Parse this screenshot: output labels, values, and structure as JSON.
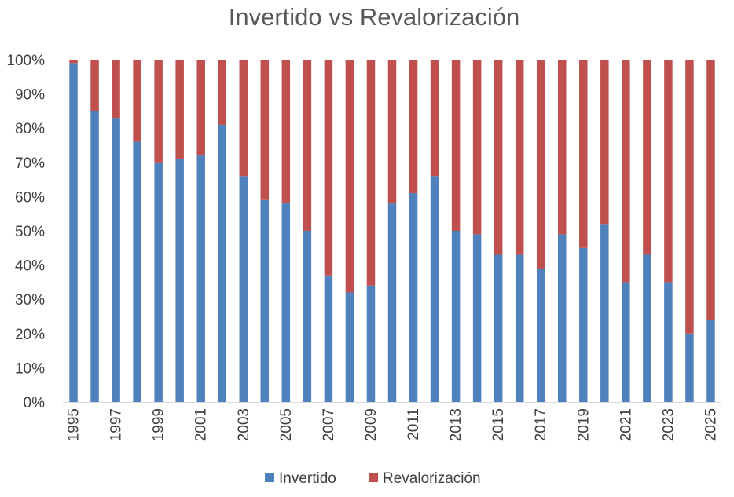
{
  "chart_data": {
    "type": "bar",
    "stacked": true,
    "percent_stacked": true,
    "title": "Invertido vs Revalorización",
    "xlabel": "",
    "ylabel": "",
    "ylim": [
      0,
      100
    ],
    "y_ticks": [
      "0%",
      "10%",
      "20%",
      "30%",
      "40%",
      "50%",
      "60%",
      "70%",
      "80%",
      "90%",
      "100%"
    ],
    "categories": [
      1995,
      1996,
      1997,
      1998,
      1999,
      2000,
      2001,
      2002,
      2003,
      2004,
      2005,
      2006,
      2007,
      2008,
      2009,
      2010,
      2011,
      2012,
      2013,
      2014,
      2015,
      2016,
      2017,
      2018,
      2019,
      2020,
      2021,
      2022,
      2023,
      2024,
      2025
    ],
    "x_tick_labels": [
      "1995",
      "1997",
      "1999",
      "2001",
      "2003",
      "2005",
      "2007",
      "2009",
      "2011",
      "2013",
      "2015",
      "2017",
      "2019",
      "2021",
      "2023",
      "2025"
    ],
    "series": [
      {
        "name": "Invertido",
        "color": "#4f81bd",
        "values": [
          99,
          85,
          83,
          76,
          70,
          71,
          72,
          81,
          66,
          59,
          58,
          50,
          37,
          32,
          34,
          58,
          61,
          66,
          50,
          49,
          43,
          43,
          39,
          49,
          45,
          52,
          35,
          43,
          35,
          20,
          24
        ]
      },
      {
        "name": "Revalorización",
        "color": "#c0504d",
        "values": [
          1,
          15,
          17,
          24,
          30,
          29,
          28,
          19,
          34,
          41,
          42,
          50,
          63,
          68,
          66,
          42,
          39,
          34,
          50,
          51,
          57,
          57,
          61,
          51,
          55,
          48,
          65,
          57,
          65,
          80,
          76
        ]
      }
    ],
    "legend_position": "bottom",
    "grid": false
  }
}
